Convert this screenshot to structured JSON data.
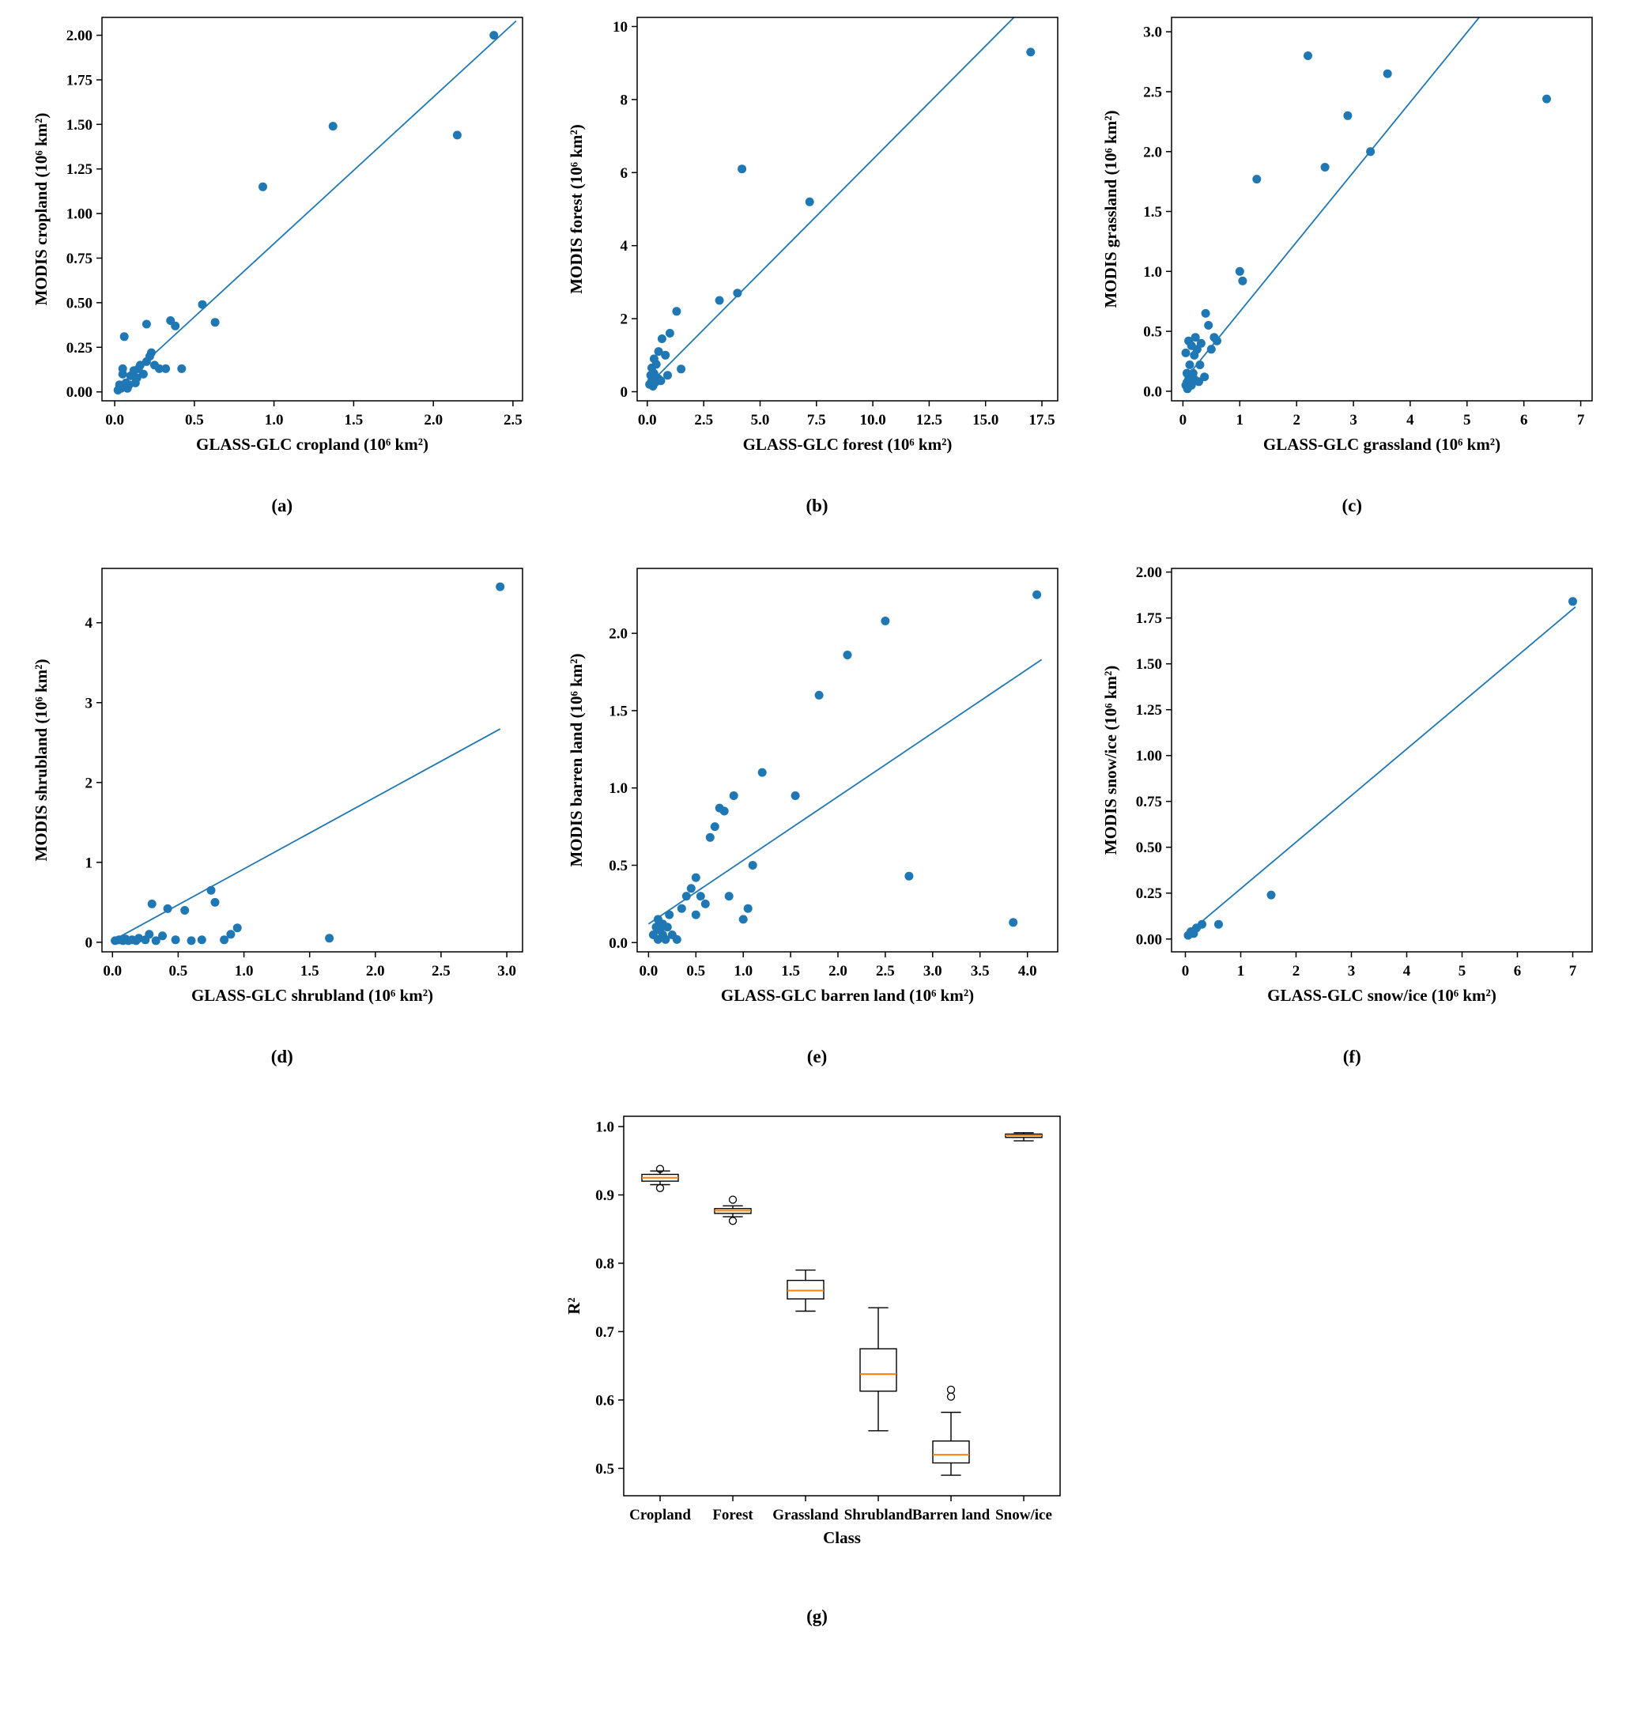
{
  "figure": {
    "background": "#ffffff",
    "point_color": "#1f77b4",
    "median_color": "#ff7f0e"
  },
  "chart_data": [
    {
      "type": "scatter",
      "caption": "(a)",
      "xlabel": "GLASS-GLC cropland (10⁶ km²)",
      "ylabel": "MODIS cropland (10⁶ km²)",
      "xlim": [
        -0.08,
        2.56
      ],
      "ylim": [
        -0.05,
        2.1
      ],
      "xticks": [
        0,
        0.5,
        1.0,
        1.5,
        2.0,
        2.5
      ],
      "xtick_labels": [
        "0.0",
        "0.5",
        "1.0",
        "1.5",
        "2.0",
        "2.5"
      ],
      "yticks": [
        0,
        0.25,
        0.5,
        0.75,
        1.0,
        1.25,
        1.5,
        1.75,
        2.0
      ],
      "ytick_labels": [
        "0.00",
        "0.25",
        "0.50",
        "0.75",
        "1.00",
        "1.25",
        "1.50",
        "1.75",
        "2.00"
      ],
      "points": [
        [
          0.02,
          0.01
        ],
        [
          0.03,
          0.04
        ],
        [
          0.04,
          0.02
        ],
        [
          0.05,
          0.1
        ],
        [
          0.05,
          0.13
        ],
        [
          0.06,
          0.31
        ],
        [
          0.07,
          0.05
        ],
        [
          0.08,
          0.02
        ],
        [
          0.09,
          0.04
        ],
        [
          0.1,
          0.09
        ],
        [
          0.12,
          0.12
        ],
        [
          0.13,
          0.05
        ],
        [
          0.14,
          0.08
        ],
        [
          0.15,
          0.13
        ],
        [
          0.16,
          0.15
        ],
        [
          0.18,
          0.1
        ],
        [
          0.2,
          0.17
        ],
        [
          0.2,
          0.38
        ],
        [
          0.22,
          0.2
        ],
        [
          0.23,
          0.22
        ],
        [
          0.25,
          0.15
        ],
        [
          0.28,
          0.13
        ],
        [
          0.32,
          0.13
        ],
        [
          0.35,
          0.4
        ],
        [
          0.38,
          0.37
        ],
        [
          0.42,
          0.13
        ],
        [
          0.55,
          0.49
        ],
        [
          0.63,
          0.39
        ],
        [
          0.93,
          1.15
        ],
        [
          1.37,
          1.49
        ],
        [
          2.15,
          1.44
        ],
        [
          2.38,
          2.0
        ]
      ],
      "line": [
        [
          0,
          0.01
        ],
        [
          2.52,
          2.08
        ]
      ],
      "color": "#1f77b4"
    },
    {
      "type": "scatter",
      "caption": "(b)",
      "xlabel": "GLASS-GLC forest (10⁶ km²)",
      "ylabel": "MODIS forest (10⁶ km²)",
      "xlim": [
        -0.45,
        18.2
      ],
      "ylim": [
        -0.25,
        10.25
      ],
      "xticks": [
        0,
        2.5,
        5.0,
        7.5,
        10.0,
        12.5,
        15.0,
        17.5
      ],
      "xtick_labels": [
        "0.0",
        "2.5",
        "5.0",
        "7.5",
        "10.0",
        "12.5",
        "15.0",
        "17.5"
      ],
      "yticks": [
        0,
        2,
        4,
        6,
        8,
        10
      ],
      "ytick_labels": [
        "0",
        "2",
        "4",
        "6",
        "8",
        "10"
      ],
      "points": [
        [
          0.1,
          0.2
        ],
        [
          0.15,
          0.45
        ],
        [
          0.2,
          0.3
        ],
        [
          0.2,
          0.65
        ],
        [
          0.25,
          0.15
        ],
        [
          0.3,
          0.5
        ],
        [
          0.3,
          0.9
        ],
        [
          0.35,
          0.25
        ],
        [
          0.4,
          0.75
        ],
        [
          0.5,
          0.35
        ],
        [
          0.5,
          1.1
        ],
        [
          0.6,
          0.3
        ],
        [
          0.65,
          1.45
        ],
        [
          0.8,
          1.0
        ],
        [
          0.9,
          0.45
        ],
        [
          1.0,
          1.6
        ],
        [
          1.3,
          2.2
        ],
        [
          1.5,
          0.62
        ],
        [
          3.2,
          2.5
        ],
        [
          4.0,
          2.7
        ],
        [
          4.2,
          6.1
        ],
        [
          7.2,
          5.2
        ],
        [
          17.0,
          9.3
        ]
      ],
      "line": [
        [
          0,
          0.15
        ],
        [
          16.5,
          10.4
        ]
      ],
      "color": "#1f77b4"
    },
    {
      "type": "scatter",
      "caption": "(c)",
      "xlabel": "GLASS-GLC grassland (10⁶ km²)",
      "ylabel": "MODIS grassland (10⁶ km²)",
      "xlim": [
        -0.2,
        7.2
      ],
      "ylim": [
        -0.08,
        3.12
      ],
      "xticks": [
        0,
        1,
        2,
        3,
        4,
        5,
        6,
        7
      ],
      "xtick_labels": [
        "0",
        "1",
        "2",
        "3",
        "4",
        "5",
        "6",
        "7"
      ],
      "yticks": [
        0,
        0.5,
        1.0,
        1.5,
        2.0,
        2.5,
        3.0
      ],
      "ytick_labels": [
        "0.0",
        "0.5",
        "1.0",
        "1.5",
        "2.0",
        "2.5",
        "3.0"
      ],
      "points": [
        [
          0.05,
          0.05
        ],
        [
          0.05,
          0.32
        ],
        [
          0.07,
          0.15
        ],
        [
          0.08,
          0.02
        ],
        [
          0.1,
          0.1
        ],
        [
          0.1,
          0.42
        ],
        [
          0.12,
          0.22
        ],
        [
          0.15,
          0.05
        ],
        [
          0.15,
          0.38
        ],
        [
          0.18,
          0.15
        ],
        [
          0.2,
          0.1
        ],
        [
          0.2,
          0.3
        ],
        [
          0.22,
          0.45
        ],
        [
          0.25,
          0.35
        ],
        [
          0.28,
          0.08
        ],
        [
          0.3,
          0.22
        ],
        [
          0.32,
          0.4
        ],
        [
          0.38,
          0.12
        ],
        [
          0.4,
          0.65
        ],
        [
          0.45,
          0.55
        ],
        [
          0.5,
          0.35
        ],
        [
          0.55,
          0.45
        ],
        [
          0.6,
          0.42
        ],
        [
          1.0,
          1.0
        ],
        [
          1.05,
          0.92
        ],
        [
          1.3,
          1.77
        ],
        [
          2.2,
          2.8
        ],
        [
          2.5,
          1.87
        ],
        [
          2.9,
          2.3
        ],
        [
          3.3,
          2.0
        ],
        [
          3.6,
          2.65
        ],
        [
          6.4,
          2.44
        ]
      ],
      "line": [
        [
          0,
          0.08
        ],
        [
          5.35,
          3.2
        ]
      ],
      "color": "#1f77b4"
    },
    {
      "type": "scatter",
      "caption": "(d)",
      "xlabel": "GLASS-GLC shrubland (10⁶ km²)",
      "ylabel": "MODIS shrubland (10⁶ km²)",
      "xlim": [
        -0.08,
        3.12
      ],
      "ylim": [
        -0.12,
        4.68
      ],
      "xticks": [
        0,
        0.5,
        1.0,
        1.5,
        2.0,
        2.5,
        3.0
      ],
      "xtick_labels": [
        "0.0",
        "0.5",
        "1.0",
        "1.5",
        "2.0",
        "2.5",
        "3.0"
      ],
      "yticks": [
        0,
        1,
        2,
        3,
        4
      ],
      "ytick_labels": [
        "0",
        "1",
        "2",
        "3",
        "4"
      ],
      "points": [
        [
          0.02,
          0.02
        ],
        [
          0.05,
          0.03
        ],
        [
          0.08,
          0.02
        ],
        [
          0.1,
          0.04
        ],
        [
          0.12,
          0.02
        ],
        [
          0.15,
          0.03
        ],
        [
          0.18,
          0.02
        ],
        [
          0.2,
          0.05
        ],
        [
          0.25,
          0.03
        ],
        [
          0.28,
          0.1
        ],
        [
          0.3,
          0.48
        ],
        [
          0.33,
          0.02
        ],
        [
          0.38,
          0.08
        ],
        [
          0.42,
          0.42
        ],
        [
          0.48,
          0.03
        ],
        [
          0.55,
          0.4
        ],
        [
          0.6,
          0.02
        ],
        [
          0.68,
          0.03
        ],
        [
          0.75,
          0.65
        ],
        [
          0.78,
          0.5
        ],
        [
          0.85,
          0.03
        ],
        [
          0.9,
          0.1
        ],
        [
          0.95,
          0.18
        ],
        [
          1.65,
          0.05
        ],
        [
          2.95,
          4.45
        ]
      ],
      "line": [
        [
          0,
          0.02
        ],
        [
          2.95,
          2.67
        ]
      ],
      "color": "#1f77b4"
    },
    {
      "type": "scatter",
      "caption": "(e)",
      "xlabel": "GLASS-GLC barren land (10⁶ km²)",
      "ylabel": "MODIS barren land (10⁶ km²)",
      "xlim": [
        -0.12,
        4.32
      ],
      "ylim": [
        -0.06,
        2.42
      ],
      "xticks": [
        0,
        0.5,
        1.0,
        1.5,
        2.0,
        2.5,
        3.0,
        3.5,
        4.0
      ],
      "xtick_labels": [
        "0.0",
        "0.5",
        "1.0",
        "1.5",
        "2.0",
        "2.5",
        "3.0",
        "3.5",
        "4.0"
      ],
      "yticks": [
        0,
        0.5,
        1.0,
        1.5,
        2.0
      ],
      "ytick_labels": [
        "0.0",
        "0.5",
        "1.0",
        "1.5",
        "2.0"
      ],
      "points": [
        [
          0.05,
          0.05
        ],
        [
          0.08,
          0.1
        ],
        [
          0.1,
          0.02
        ],
        [
          0.1,
          0.15
        ],
        [
          0.12,
          0.08
        ],
        [
          0.15,
          0.05
        ],
        [
          0.15,
          0.12
        ],
        [
          0.18,
          0.02
        ],
        [
          0.2,
          0.1
        ],
        [
          0.22,
          0.18
        ],
        [
          0.25,
          0.05
        ],
        [
          0.3,
          0.02
        ],
        [
          0.35,
          0.22
        ],
        [
          0.4,
          0.3
        ],
        [
          0.45,
          0.35
        ],
        [
          0.5,
          0.18
        ],
        [
          0.5,
          0.42
        ],
        [
          0.55,
          0.3
        ],
        [
          0.6,
          0.25
        ],
        [
          0.65,
          0.68
        ],
        [
          0.7,
          0.75
        ],
        [
          0.75,
          0.87
        ],
        [
          0.8,
          0.85
        ],
        [
          0.85,
          0.3
        ],
        [
          0.9,
          0.95
        ],
        [
          1.0,
          0.15
        ],
        [
          1.05,
          0.22
        ],
        [
          1.1,
          0.5
        ],
        [
          1.2,
          1.1
        ],
        [
          1.55,
          0.95
        ],
        [
          1.8,
          1.6
        ],
        [
          2.1,
          1.86
        ],
        [
          2.5,
          2.08
        ],
        [
          2.75,
          0.43
        ],
        [
          3.85,
          0.13
        ],
        [
          4.1,
          2.25
        ]
      ],
      "line": [
        [
          0,
          0.12
        ],
        [
          4.15,
          1.83
        ]
      ],
      "color": "#1f77b4"
    },
    {
      "type": "scatter",
      "caption": "(f)",
      "xlabel": "GLASS-GLC snow/ice (10⁶ km²)",
      "ylabel": "MODIS snow/ice (10⁶ km²)",
      "xlim": [
        -0.25,
        7.35
      ],
      "ylim": [
        -0.07,
        2.02
      ],
      "xticks": [
        0,
        1,
        2,
        3,
        4,
        5,
        6,
        7
      ],
      "xtick_labels": [
        "0",
        "1",
        "2",
        "3",
        "4",
        "5",
        "6",
        "7"
      ],
      "yticks": [
        0,
        0.25,
        0.5,
        0.75,
        1.0,
        1.25,
        1.5,
        1.75,
        2.0
      ],
      "ytick_labels": [
        "0.00",
        "0.25",
        "0.50",
        "0.75",
        "1.00",
        "1.25",
        "1.50",
        "1.75",
        "2.00"
      ],
      "points": [
        [
          0.05,
          0.02
        ],
        [
          0.1,
          0.04
        ],
        [
          0.15,
          0.03
        ],
        [
          0.2,
          0.06
        ],
        [
          0.3,
          0.08
        ],
        [
          0.6,
          0.08
        ],
        [
          1.55,
          0.24
        ],
        [
          7.0,
          1.84
        ]
      ],
      "line": [
        [
          0,
          0.02
        ],
        [
          7.05,
          1.81
        ]
      ],
      "color": "#1f77b4"
    },
    {
      "type": "box",
      "caption": "(g)",
      "xlabel": "Class",
      "ylabel": "R²",
      "ylim": [
        0.46,
        1.015
      ],
      "yticks": [
        0.5,
        0.6,
        0.7,
        0.8,
        0.9,
        1.0
      ],
      "ytick_labels": [
        "0.5",
        "0.6",
        "0.7",
        "0.8",
        "0.9",
        "1.0"
      ],
      "categories": [
        "Cropland",
        "Forest",
        "Grassland",
        "Shrubland",
        "Barren land",
        "Snow/ice"
      ],
      "boxes": [
        {
          "lo": 0.915,
          "q1": 0.92,
          "med": 0.925,
          "q3": 0.93,
          "hi": 0.935,
          "outliers": [
            0.938,
            0.91
          ]
        },
        {
          "lo": 0.868,
          "q1": 0.873,
          "med": 0.877,
          "q3": 0.88,
          "hi": 0.884,
          "outliers": [
            0.893,
            0.862
          ]
        },
        {
          "lo": 0.73,
          "q1": 0.748,
          "med": 0.76,
          "q3": 0.775,
          "hi": 0.79,
          "outliers": []
        },
        {
          "lo": 0.555,
          "q1": 0.613,
          "med": 0.638,
          "q3": 0.675,
          "hi": 0.735,
          "outliers": []
        },
        {
          "lo": 0.49,
          "q1": 0.508,
          "med": 0.52,
          "q3": 0.54,
          "hi": 0.582,
          "outliers": [
            0.615,
            0.605
          ]
        },
        {
          "lo": 0.979,
          "q1": 0.984,
          "med": 0.987,
          "q3": 0.989,
          "hi": 0.991,
          "outliers": []
        }
      ],
      "median_color": "#ff7f0e",
      "color": "#000000"
    }
  ]
}
